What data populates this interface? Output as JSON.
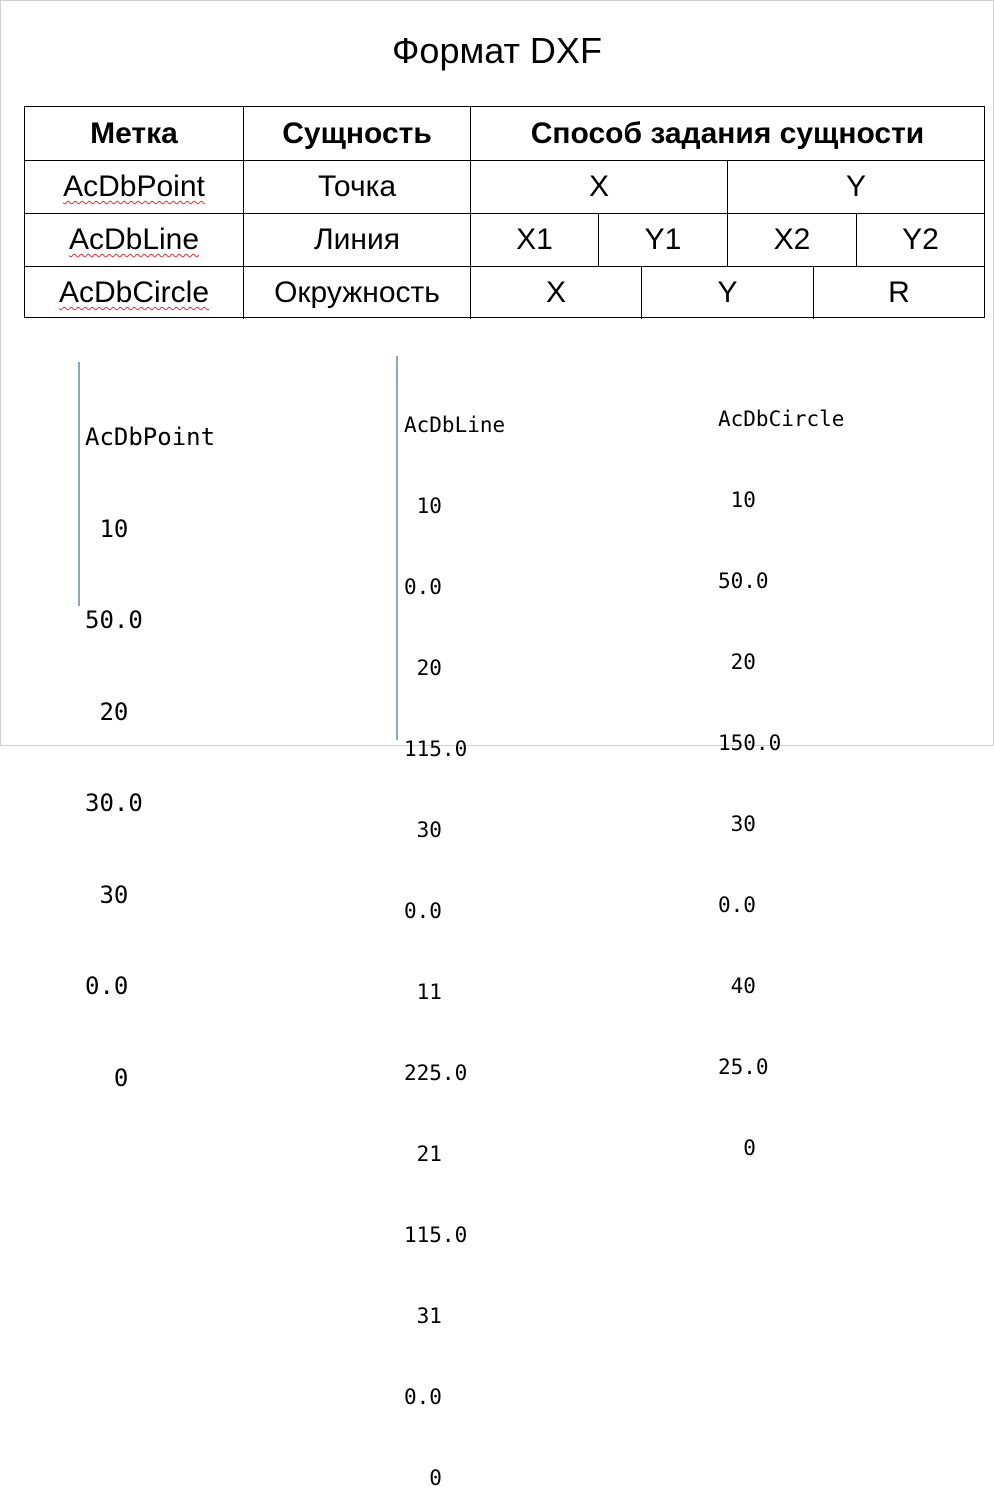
{
  "title": "Формат DXF",
  "table": {
    "headers": [
      "Метка",
      "Сущность",
      "Способ задания сущности"
    ],
    "rows": [
      {
        "label": "AcDbPoint",
        "entity": "Точка",
        "params": [
          "X",
          "Y"
        ]
      },
      {
        "label": "AcDbLine",
        "entity": "Линия",
        "params": [
          "X1",
          "Y1",
          "X2",
          "Y2"
        ]
      },
      {
        "label": "AcDbCircle",
        "entity": "Окружность",
        "params": [
          "X",
          "Y",
          "R"
        ]
      }
    ]
  },
  "code_samples": {
    "point": [
      "AcDbPoint",
      " 10",
      "50.0",
      " 20",
      "30.0",
      " 30",
      "0.0",
      "  0"
    ],
    "line": [
      "AcDbLine",
      " 10",
      "0.0",
      " 20",
      "115.0",
      " 30",
      "0.0",
      " 11",
      "225.0",
      " 21",
      "115.0",
      " 31",
      "0.0",
      "  0"
    ],
    "circle": [
      "AcDbCircle",
      " 10",
      "50.0",
      " 20",
      "150.0",
      " 30",
      "0.0",
      " 40",
      "25.0",
      "  0"
    ]
  }
}
